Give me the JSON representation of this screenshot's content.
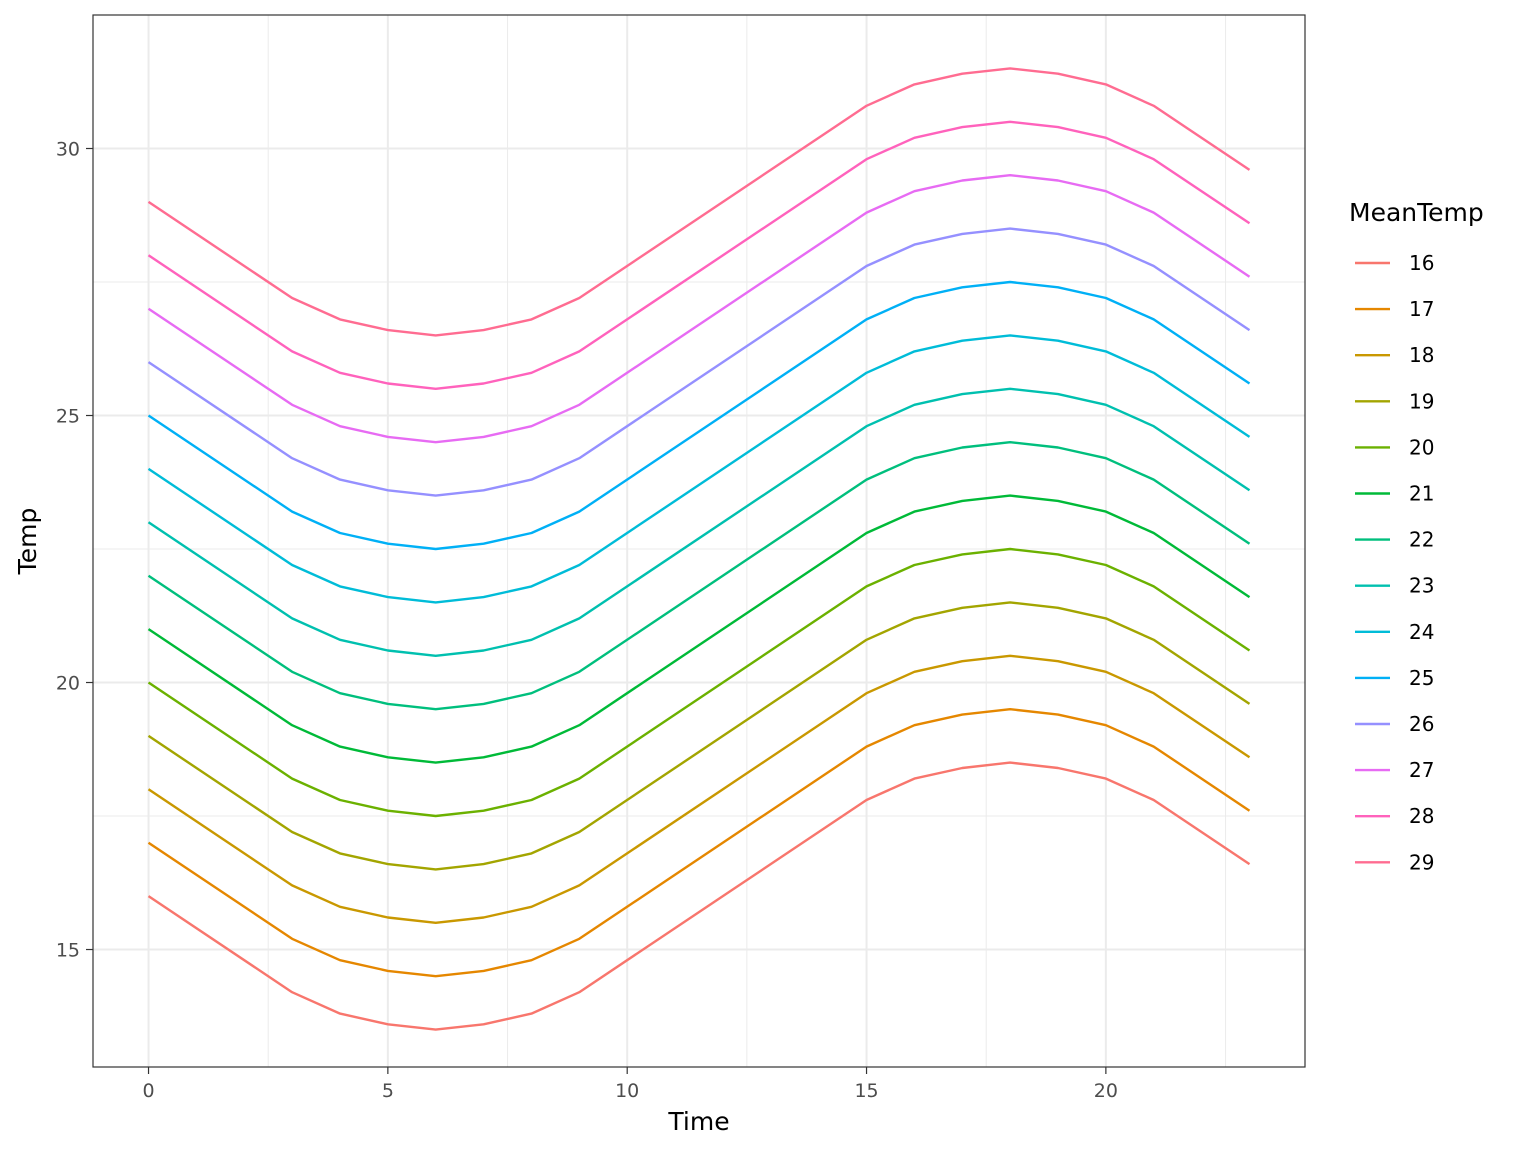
{
  "chart_data": {
    "type": "line",
    "title": "",
    "xlabel": "Time",
    "ylabel": "Temp",
    "xlim": [
      -1.16,
      24.16
    ],
    "ylim": [
      12.8,
      32.5
    ],
    "x_major_ticks": [
      0,
      5,
      10,
      15,
      20
    ],
    "x_minor_ticks": [
      2.5,
      7.5,
      12.5,
      17.5,
      22.5
    ],
    "y_major_ticks": [
      15,
      20,
      25,
      30
    ],
    "y_minor_ticks": [
      17.5,
      22.5,
      27.5
    ],
    "grid": true,
    "legend": {
      "title": "MeanTemp",
      "position": "right"
    },
    "x": [
      0,
      3,
      4,
      5,
      6,
      7,
      8,
      9,
      15,
      16,
      17,
      18,
      19,
      20,
      21,
      23
    ],
    "offsets": [
      0,
      -1.8,
      -2.2,
      -2.4,
      -2.5,
      -2.4,
      -2.2,
      -1.8,
      1.8,
      2.2,
      2.4,
      2.5,
      2.4,
      2.2,
      1.8,
      0.6
    ],
    "series": [
      {
        "name": "16",
        "mean": 16,
        "color": "#F8766D"
      },
      {
        "name": "17",
        "mean": 17,
        "color": "#E58700"
      },
      {
        "name": "18",
        "mean": 18,
        "color": "#C99800"
      },
      {
        "name": "19",
        "mean": 19,
        "color": "#A3A500"
      },
      {
        "name": "20",
        "mean": 20,
        "color": "#6BB100"
      },
      {
        "name": "21",
        "mean": 21,
        "color": "#00BA38"
      },
      {
        "name": "22",
        "mean": 22,
        "color": "#00BF7D"
      },
      {
        "name": "23",
        "mean": 23,
        "color": "#00C0AF"
      },
      {
        "name": "24",
        "mean": 24,
        "color": "#00BCD8"
      },
      {
        "name": "25",
        "mean": 25,
        "color": "#00B0F6"
      },
      {
        "name": "26",
        "mean": 26,
        "color": "#9590FF"
      },
      {
        "name": "27",
        "mean": 27,
        "color": "#E76BF3"
      },
      {
        "name": "28",
        "mean": 28,
        "color": "#FF62BC"
      },
      {
        "name": "29",
        "mean": 29,
        "color": "#FF6C91"
      }
    ]
  }
}
